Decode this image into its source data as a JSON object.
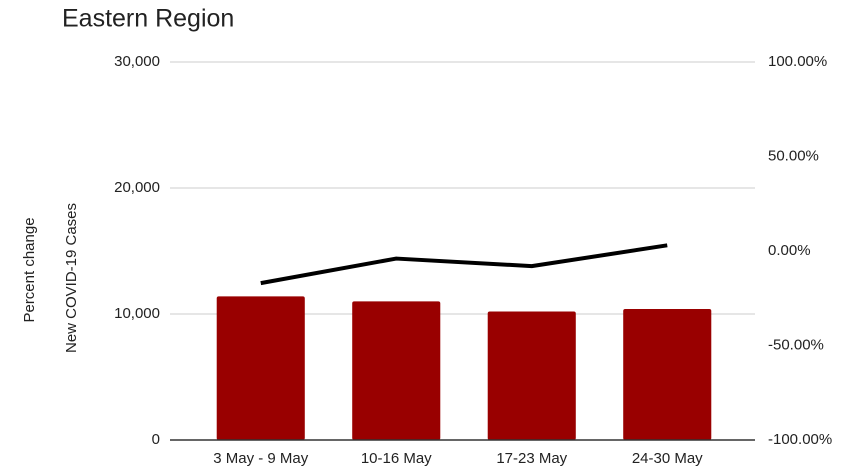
{
  "chart_data": {
    "type": "combo",
    "title": "Eastern Region",
    "ylabel": "New COVID-19 Cases",
    "y2label": "Percent change",
    "categories": [
      "3 May - 9 May",
      "10-16 May",
      "17-23 May",
      "24-30 May"
    ],
    "series": [
      {
        "type": "bar",
        "color": "#990000",
        "values": [
          11400,
          11000,
          10200,
          10400
        ]
      },
      {
        "type": "line",
        "axis": "y2",
        "color": "#000000",
        "values": [
          -17,
          -4,
          -8,
          3
        ]
      }
    ],
    "ylim": [
      0,
      30000
    ],
    "yticks": [
      0,
      {
        "value": 10000,
        "label": "10,000"
      },
      {
        "value": 20000,
        "label": "20,000"
      },
      {
        "value": 30000,
        "label": "30,000"
      }
    ],
    "y2lim": [
      -100,
      100
    ],
    "y2ticks": [
      {
        "value": -100,
        "label": "-100.00%"
      },
      {
        "value": -50,
        "label": "-50.00%"
      },
      {
        "value": 0,
        "label": "0.00%"
      },
      {
        "value": 50,
        "label": "50.00%"
      },
      {
        "value": 100,
        "label": "100.00%"
      }
    ],
    "grid": true
  }
}
